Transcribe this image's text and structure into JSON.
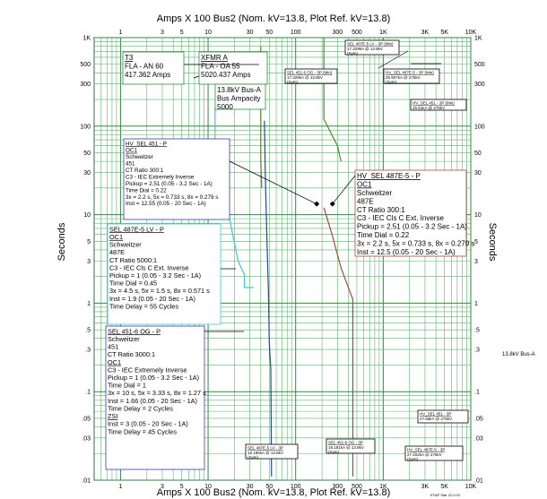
{
  "header": {
    "top_title": "Amps  X  100   Bus2 (Nom. kV=13.8, Plot Ref. kV=13.8)",
    "bottom_title": "Amps  X  100   Bus2 (Nom. kV=13.8, Plot Ref. kV=13.8)",
    "ylabel_left": "Seconds",
    "ylabel_right": "Seconds",
    "bus_label": "13.8kV  Bus-A",
    "footer": "ETAP Star 22.0.0C"
  },
  "chart_data": {
    "type": "line",
    "xscale": "log",
    "yscale": "log",
    "xlim": [
      0.5,
      10000
    ],
    "ylim": [
      0.01,
      1000
    ],
    "x_ticks": [
      {
        "v": 1,
        "label": "1"
      },
      {
        "v": 3,
        "label": "3"
      },
      {
        "v": 5,
        "label": "5"
      },
      {
        "v": 10,
        "label": "10"
      },
      {
        "v": 30,
        "label": "30"
      },
      {
        "v": 50,
        "label": "50"
      },
      {
        "v": 100,
        "label": "100"
      },
      {
        "v": 300,
        "label": "300"
      },
      {
        "v": 500,
        "label": "500"
      },
      {
        "v": 1000,
        "label": "1K"
      },
      {
        "v": 3000,
        "label": "3K"
      },
      {
        "v": 5000,
        "label": "5K"
      },
      {
        "v": 10000,
        "label": "10K"
      }
    ],
    "y_ticks": [
      {
        "v": 1000,
        "label": "1K"
      },
      {
        "v": 500,
        "label": "500"
      },
      {
        "v": 300,
        "label": "300"
      },
      {
        "v": 100,
        "label": "100"
      },
      {
        "v": 50,
        "label": "50"
      },
      {
        "v": 30,
        "label": "30"
      },
      {
        "v": 10,
        "label": "10"
      },
      {
        "v": 5,
        "label": "5"
      },
      {
        "v": 3,
        "label": "3"
      },
      {
        "v": 1,
        "label": "1"
      },
      {
        "v": 0.5,
        "label": ".5"
      },
      {
        "v": 0.3,
        "label": ".3"
      },
      {
        "v": 0.1,
        "label": ".1"
      },
      {
        "v": 0.05,
        "label": ".05"
      },
      {
        "v": 0.03,
        "label": ".03"
      },
      {
        "v": 0.01,
        "label": ".01"
      }
    ],
    "grid": true,
    "series": [
      {
        "color": "#4a8a2a",
        "points": [
          [
            40,
            800
          ],
          [
            40,
            40
          ],
          [
            41,
            20
          ]
        ]
      },
      {
        "color": "#3a3aaa",
        "points": [
          [
            44,
            115
          ],
          [
            45,
            30
          ],
          [
            47,
            5
          ],
          [
            49,
            1.3
          ],
          [
            50,
            0.35
          ],
          [
            52,
            0.18
          ],
          [
            53,
            0.011
          ]
        ]
      },
      {
        "color": "#a34a3a",
        "points": [
          [
            210,
            12
          ],
          [
            260,
            6
          ],
          [
            330,
            2.5
          ],
          [
            450,
            1.1
          ],
          [
            450,
            0.011
          ]
        ]
      },
      {
        "color": "#40c8c8",
        "points": [
          [
            12,
            160
          ],
          [
            12,
            40
          ],
          [
            14,
            20
          ],
          [
            18,
            8
          ],
          [
            22,
            3
          ],
          [
            26,
            2.1
          ],
          [
            26,
            1.5
          ],
          [
            33,
            1.5
          ]
        ]
      },
      {
        "color": "#4a8a2a",
        "points": [
          [
            210,
            1000
          ],
          [
            210,
            120
          ],
          [
            300,
            60
          ],
          [
            330,
            40
          ]
        ]
      }
    ],
    "markers": [
      {
        "x": 174,
        "y": 13.2
      },
      {
        "x": 263,
        "y": 13.2
      }
    ],
    "labels": [
      {
        "lines": [
          "T3",
          "FLA - AN 60",
          "417.362 Amps"
        ]
      },
      {
        "lines": [
          "XFMR A",
          "FLA - OA 55",
          "5020.437 Amps"
        ]
      },
      {
        "lines": [
          "13.8kV  Bus-A",
          "Bus Ampacity",
          "5000"
        ]
      },
      {
        "lines": [
          "SEL 487E-5 LV - 3P (Min)",
          "17.329kA @ 13.8kV",
          "(Sym)"
        ]
      },
      {
        "lines": [
          "SEL 451-6 OG - 3P (Min)",
          "17.329kA @ 13.8kV",
          "(Sym)"
        ]
      },
      {
        "lines": [
          "HV_SEL 487E-5 - 3P (Min)",
          "25.907kA @ 275kV",
          "(Sym)"
        ]
      },
      {
        "lines": [
          "HV_SEL 451 - 3P (Min)",
          "25.61kA @ 275kV"
        ]
      },
      {
        "lines": [
          "HV_SEL 451 - P",
          "OC1",
          "Schweitzer",
          "451",
          "CT Ratio 300:1",
          "C3 - IEC Extremely Inverse",
          "Pickup = 2.51 (0.05 - 3.2  Sec - 1A)",
          "Time Dial = 0.22",
          "3x = 2.2 s, 5x = 0.733 s, 8x = 0.279 s",
          "Inst = 12.55 (0.05 - 20  Sec - 1A)"
        ]
      },
      {
        "lines": [
          "HV_SEL 487E-5 - P",
          "OC1",
          "Schweitzer",
          "487E",
          "CT Ratio 300:1",
          "C3 - IEC Cls C Ext. Inverse",
          "Pickup = 2.51 (0.05 - 3.2  Sec - 1A)",
          "Time Dial = 0.22",
          "3x = 2.2 s, 5x = 0.733 s, 8x = 0.279 s",
          "Inst = 12.5 (0.05 - 20  Sec - 1A)"
        ]
      },
      {
        "lines": [
          "SEL 487E-5  LV - P",
          "OC1",
          "Schweitzer",
          "487E",
          "CT Ratio 5000:1",
          "C3 - IEC Cls C Ext. Inverse",
          "Pickup = 1 (0.05 - 3.2  Sec - 1A)",
          "Time Dial = 0.45",
          "3x = 4.5 s, 5x = 1.5 s, 8x = 0.571 s",
          "Inst = 1.9 (0.05 - 20  Sec - 1A)",
          "Time Delay = 55 Cycles"
        ]
      },
      {
        "lines": [
          "SEL 451-6  OG - P",
          "Schweitzer",
          "451",
          "CT Ratio 3000:1",
          "OC1",
          "C3 - IEC Extremely Inverse",
          "Pickup = 1 (0.05 - 3.2  Sec - 1A)",
          "Time Dial = 1",
          "3x = 10 s, 5x = 3.33 s, 8x = 1.27 s",
          "Inst = 1.66 (0.05 - 20  Sec - 1A)",
          "Time Delay = 2 Cycles",
          "ZSI",
          "Inst = 3 (0.05 - 20  Sec - 1A)",
          "Time Delay = 45 Cycles"
        ]
      },
      {
        "lines": [
          "HV_SEL 451 - 3P",
          "27.66kA @ 275kV"
        ]
      },
      {
        "lines": [
          "SEL 487E-5 LV - 3P",
          "18.195kA @ 13.8kV",
          "(Sym)"
        ]
      },
      {
        "lines": [
          "SEL 451-6  OG - 3P",
          "18.191kA @ 13.8kV",
          "(Sym)"
        ]
      },
      {
        "lines": [
          "HV_SEL 487E-5 - 3P",
          "27.202kA @ 275kV",
          "(Sym)"
        ]
      }
    ]
  }
}
